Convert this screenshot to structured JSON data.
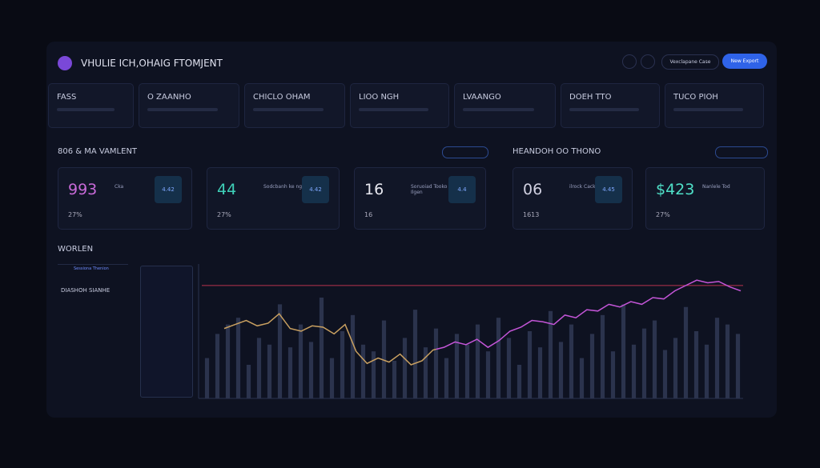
{
  "header": {
    "title": "VHULIE ICH,OHAIG FTOMJENT",
    "buttons": [
      "Vexclapane Case",
      "New Export"
    ]
  },
  "tabs": [
    "FASS",
    "O ZAANHO",
    "CHICLO OHAM",
    "LIOO NGH",
    "LVAANGO",
    "DOEH TTO",
    "TUCO PIOH"
  ],
  "sections": [
    "806 & MA VAMLENT",
    "HEANDOH OO THONO"
  ],
  "cards": [
    {
      "value": "993",
      "label": "Cka",
      "sub": "27%",
      "badge": "4.42",
      "color": "#c86ad8"
    },
    {
      "value": "44",
      "label": "Sodcbanh ke ng",
      "sub": "27%",
      "badge": "4.42",
      "color": "#3fd0b8"
    },
    {
      "value": "16",
      "label": "Soruoiad Tooko Todd Ilgen",
      "sub": "16",
      "badge": "4.4",
      "color": "#e8e8f0"
    },
    {
      "value": "06",
      "label": "ilrock Cack Todl",
      "sub": "1613",
      "badge": "4.45",
      "color": "#d0d0e0"
    },
    {
      "value": "$423",
      "label": "Nanlele Tod",
      "sub": "27%",
      "badge": "",
      "color": "#4fe0c8"
    }
  ],
  "panel": {
    "caption": "Sessiona Thenion",
    "heading": "DIASHOH SIANHE"
  },
  "chart": {
    "title": "WORLEN",
    "type": "bar-line",
    "ylim": [
      0,
      100
    ],
    "bars": [
      30,
      48,
      55,
      60,
      25,
      45,
      40,
      70,
      38,
      55,
      42,
      75,
      30,
      50,
      62,
      40,
      35,
      58,
      28,
      45,
      66,
      38,
      52,
      30,
      48,
      40,
      55,
      35,
      60,
      45,
      25,
      50,
      38,
      65,
      42,
      55,
      30,
      48,
      62,
      35,
      70,
      40,
      52,
      58,
      36,
      45,
      68,
      50,
      40,
      60,
      55,
      48
    ],
    "bar_color": "#2b334d",
    "line": [
      52,
      55,
      58,
      54,
      56,
      63,
      52,
      50,
      54,
      53,
      48,
      55,
      35,
      26,
      30,
      27,
      33,
      25,
      28,
      36,
      38,
      42,
      40,
      44,
      38,
      43,
      50,
      53,
      58,
      57,
      55,
      62,
      60,
      66,
      65,
      70,
      68,
      72,
      70,
      75,
      74,
      80,
      84,
      88,
      86,
      87,
      83,
      80
    ],
    "line_colors": [
      "#c9a060",
      "#c455d8"
    ],
    "threshold": 84,
    "threshold_color": "#b8324c"
  }
}
